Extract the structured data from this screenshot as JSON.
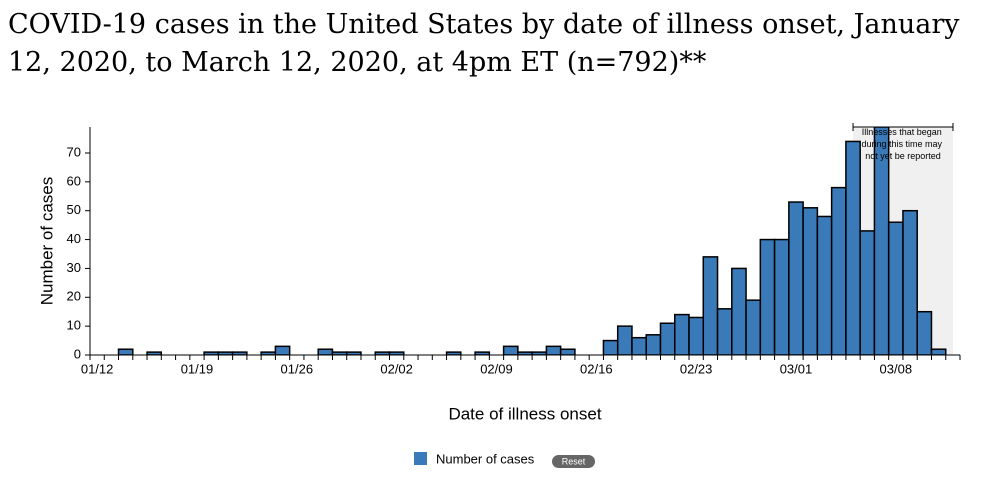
{
  "chart_data": {
    "type": "bar",
    "title": "COVID-19 cases in the United States by date of illness onset, January 12, 2020, to March 12, 2020, at 4pm ET (n=792)**",
    "xlabel": "Date of illness onset",
    "ylabel": "Number of cases",
    "annotation": "Illnesses that began during this time may not yet be reported",
    "reset_button": "Reset",
    "categories": [
      "01/12",
      null,
      null,
      null,
      null,
      null,
      null,
      "01/19",
      null,
      null,
      null,
      null,
      null,
      null,
      "01/26",
      null,
      null,
      null,
      null,
      null,
      null,
      "02/02",
      null,
      null,
      null,
      null,
      null,
      null,
      "02/09",
      null,
      null,
      null,
      null,
      null,
      null,
      "02/16",
      null,
      null,
      null,
      null,
      null,
      null,
      "02/23",
      null,
      null,
      null,
      null,
      null,
      null,
      "03/01",
      null,
      null,
      null,
      null,
      null,
      null,
      "03/08",
      null,
      null,
      null,
      null
    ],
    "series": [
      {
        "name": "Number of cases",
        "color": "#3a7ab8",
        "values": [
          0,
          0,
          2,
          0,
          1,
          0,
          0,
          0,
          1,
          1,
          1,
          0,
          1,
          3,
          0,
          0,
          2,
          1,
          1,
          0,
          1,
          1,
          0,
          0,
          0,
          1,
          0,
          1,
          0,
          3,
          1,
          1,
          3,
          2,
          0,
          0,
          5,
          10,
          6,
          7,
          11,
          14,
          13,
          34,
          16,
          30,
          19,
          40,
          40,
          53,
          51,
          48,
          58,
          74,
          43,
          79,
          46,
          50,
          15,
          2,
          0
        ]
      }
    ],
    "ylim": [
      0,
      79
    ],
    "yticks": [
      0,
      10,
      20,
      30,
      40,
      50,
      60,
      70
    ]
  }
}
